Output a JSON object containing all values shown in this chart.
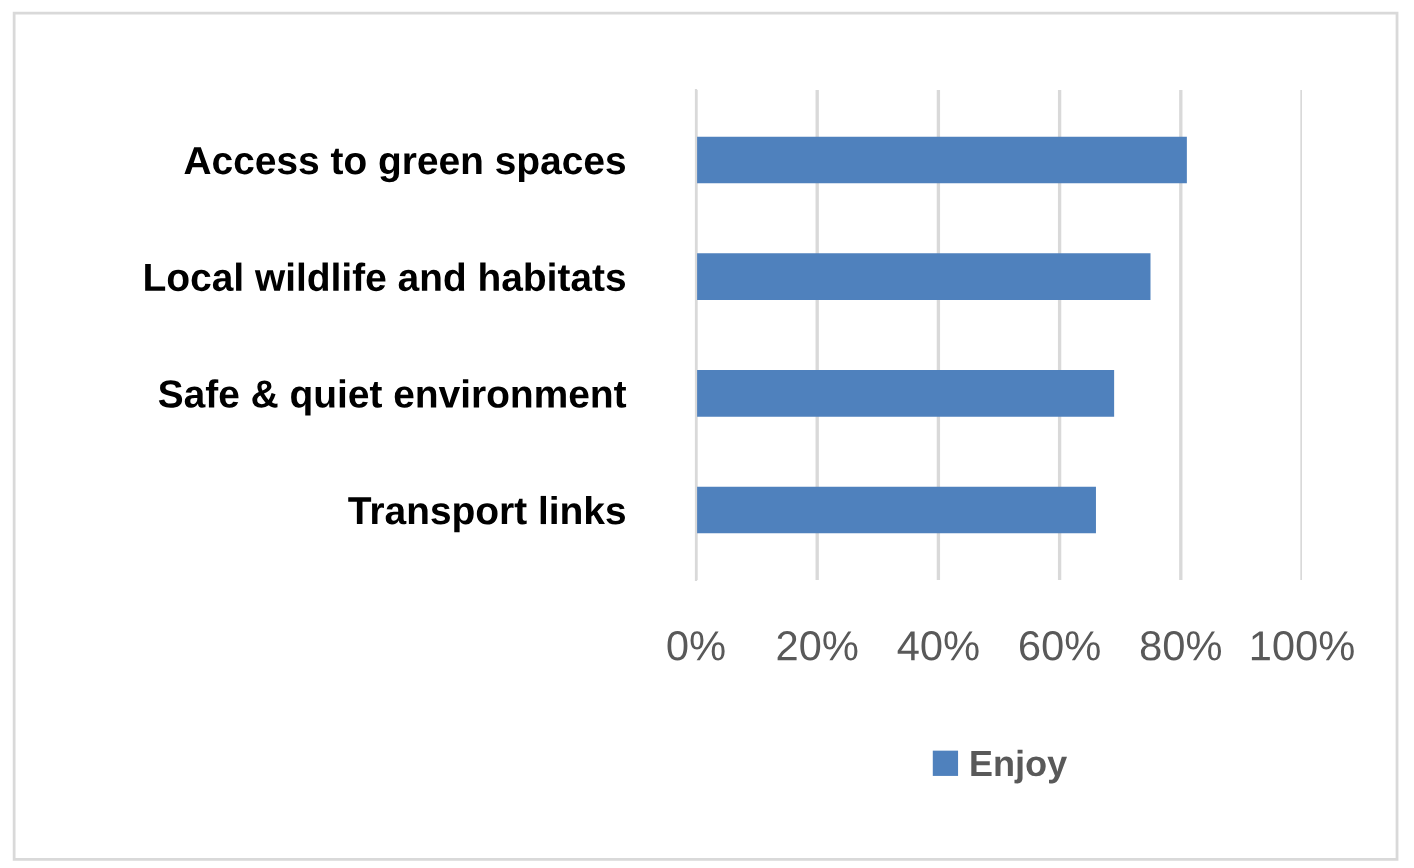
{
  "chart_data": {
    "type": "bar",
    "orientation": "horizontal",
    "categories": [
      "Access to green spaces",
      "Local wildlife and habitats",
      "Safe & quiet environment",
      "Transport links"
    ],
    "series": [
      {
        "name": "Enjoy",
        "color": "#4f81bd",
        "values": [
          81,
          75,
          69,
          66
        ]
      }
    ],
    "xlim": [
      0,
      100
    ],
    "xticks": [
      {
        "value": 0,
        "label": "0%"
      },
      {
        "value": 20,
        "label": "20%"
      },
      {
        "value": 40,
        "label": "40%"
      },
      {
        "value": 60,
        "label": "60%"
      },
      {
        "value": 80,
        "label": "80%"
      },
      {
        "value": 100,
        "label": "100%"
      }
    ],
    "grid": "x",
    "legend": "bottom"
  }
}
